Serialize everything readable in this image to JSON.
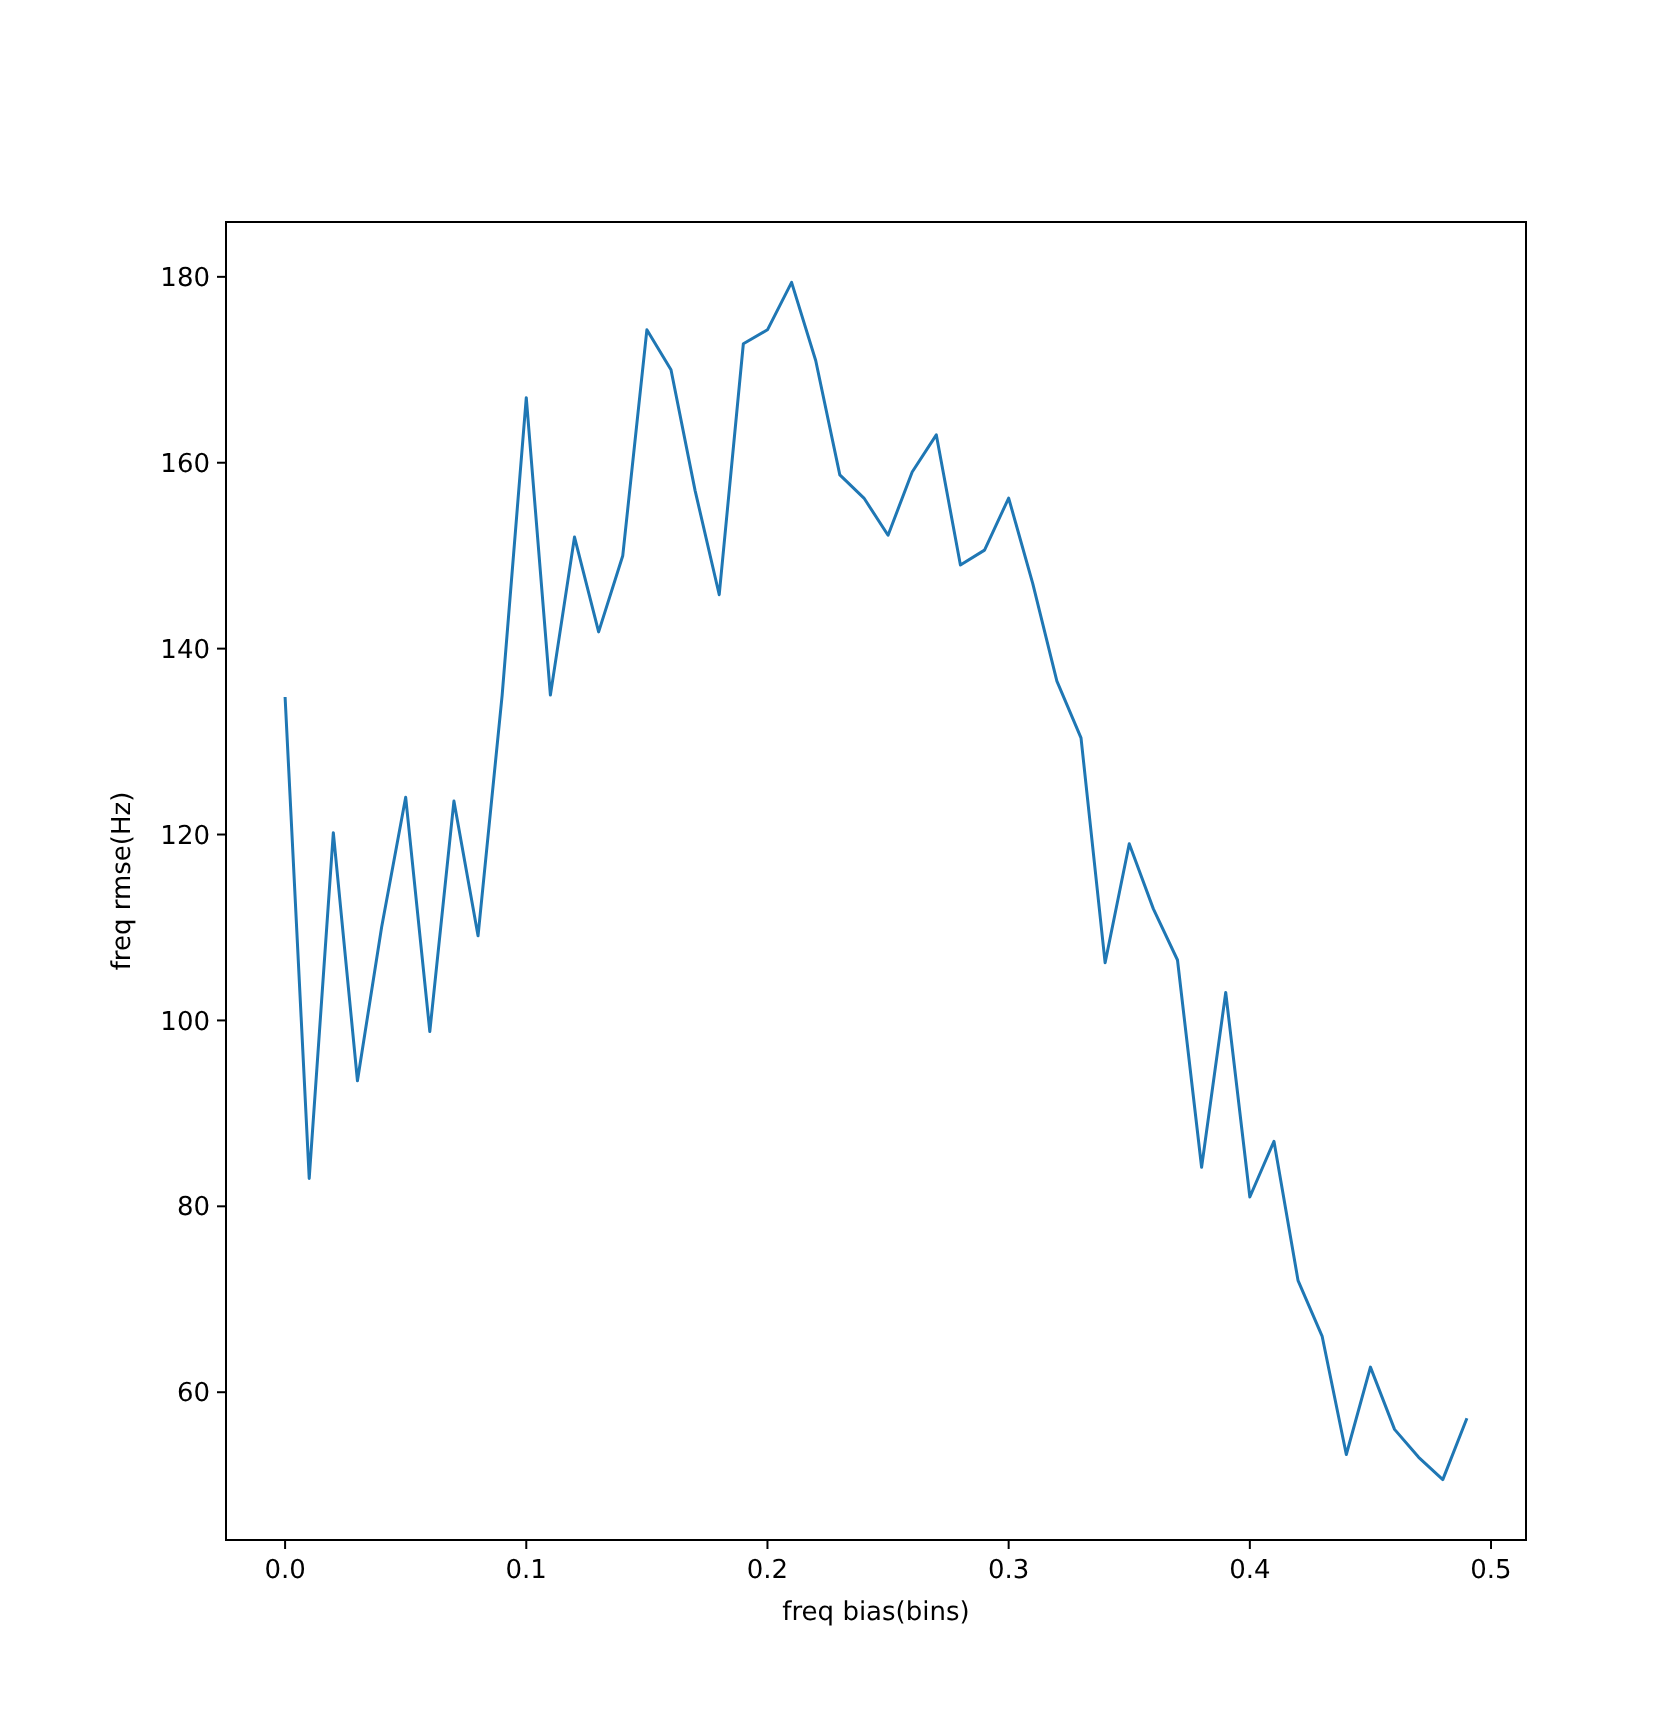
{
  "chart_data": {
    "type": "line",
    "xlabel": "freq bias(bins)",
    "ylabel": "freq rmse(Hz)",
    "x": [
      0,
      0.01,
      0.02,
      0.03,
      0.04,
      0.05,
      0.06,
      0.07,
      0.08,
      0.09,
      0.1,
      0.11,
      0.12,
      0.13,
      0.14,
      0.15,
      0.16,
      0.17,
      0.18,
      0.19,
      0.2,
      0.21,
      0.22,
      0.23,
      0.24,
      0.25,
      0.26,
      0.27,
      0.28,
      0.29,
      0.3,
      0.31,
      0.32,
      0.33,
      0.34,
      0.35,
      0.36,
      0.37,
      0.38,
      0.39,
      0.4,
      0.41,
      0.42,
      0.43,
      0.44,
      0.45,
      0.46,
      0.47,
      0.48,
      0.49
    ],
    "series": [
      {
        "color": "#1f77b4",
        "values": [
          134.8,
          83,
          120.2,
          93.5,
          110,
          124,
          98.8,
          123.6,
          109.1,
          135,
          167,
          135,
          152,
          141.8,
          150,
          174.3,
          170,
          157,
          145.8,
          172.8,
          174.3,
          179.4,
          171,
          158.7,
          156.2,
          152.2,
          159,
          163,
          149,
          150.6,
          156.2,
          147,
          136.5,
          130.4,
          106.2,
          119,
          112,
          106.5,
          84.2,
          103,
          81,
          87,
          72,
          66,
          53.3,
          62.7,
          56,
          53,
          50.6,
          57.2
        ]
      }
    ],
    "xlim": [
      -0.0245,
      0.5145
    ],
    "ylim": [
      44.1,
      185.9
    ],
    "xticks": [
      {
        "value": 0,
        "label": "0.0"
      },
      {
        "value": 0.1,
        "label": "0.1"
      },
      {
        "value": 0.2,
        "label": "0.2"
      },
      {
        "value": 0.3,
        "label": "0.3"
      },
      {
        "value": 0.4,
        "label": "0.4"
      },
      {
        "value": 0.5,
        "label": "0.5"
      }
    ],
    "yticks": [
      60,
      80,
      100,
      120,
      140,
      160,
      180
    ],
    "grid": false,
    "marker": "none",
    "line_style": "solid"
  }
}
